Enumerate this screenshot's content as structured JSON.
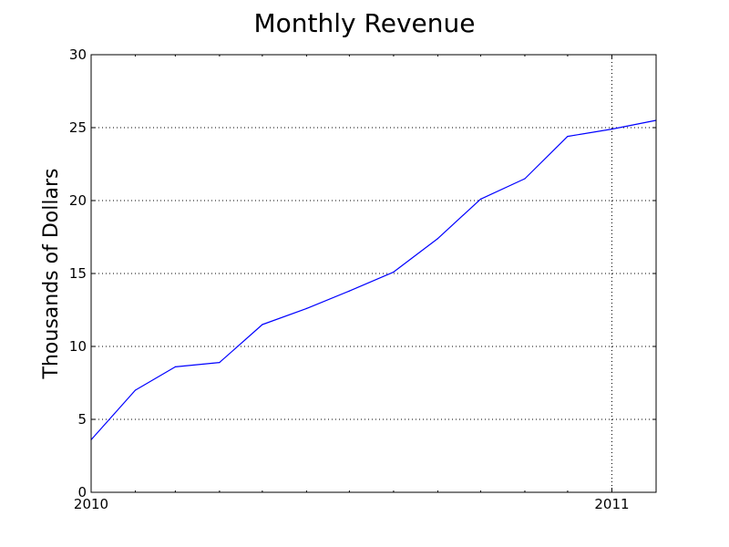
{
  "chart_data": {
    "type": "line",
    "title": "Monthly Revenue",
    "xlabel": "",
    "ylabel": "Thousands of Dollars",
    "x": [
      "2010-01-01",
      "2010-02-01",
      "2010-03-01",
      "2010-04-01",
      "2010-05-01",
      "2010-06-01",
      "2010-07-01",
      "2010-08-01",
      "2010-09-01",
      "2010-10-01",
      "2010-11-01",
      "2010-12-01",
      "2011-01-01",
      "2011-02-01"
    ],
    "values": [
      3.6,
      7.0,
      8.6,
      8.9,
      11.5,
      12.6,
      13.8,
      15.1,
      17.4,
      20.1,
      21.5,
      24.4,
      24.9,
      25.5
    ],
    "xlim": [
      "2010-01-01",
      "2011-02-01"
    ],
    "ylim": [
      0,
      30
    ],
    "yticks": [
      0,
      5,
      10,
      15,
      20,
      25,
      30
    ],
    "xticks": [
      {
        "date": "2010-01-01",
        "label": "2010"
      },
      {
        "date": "2011-01-01",
        "label": "2011"
      }
    ],
    "grid": true,
    "colors": {
      "line": "#0000ff",
      "grid": "#000000",
      "axes": "#000000"
    }
  }
}
